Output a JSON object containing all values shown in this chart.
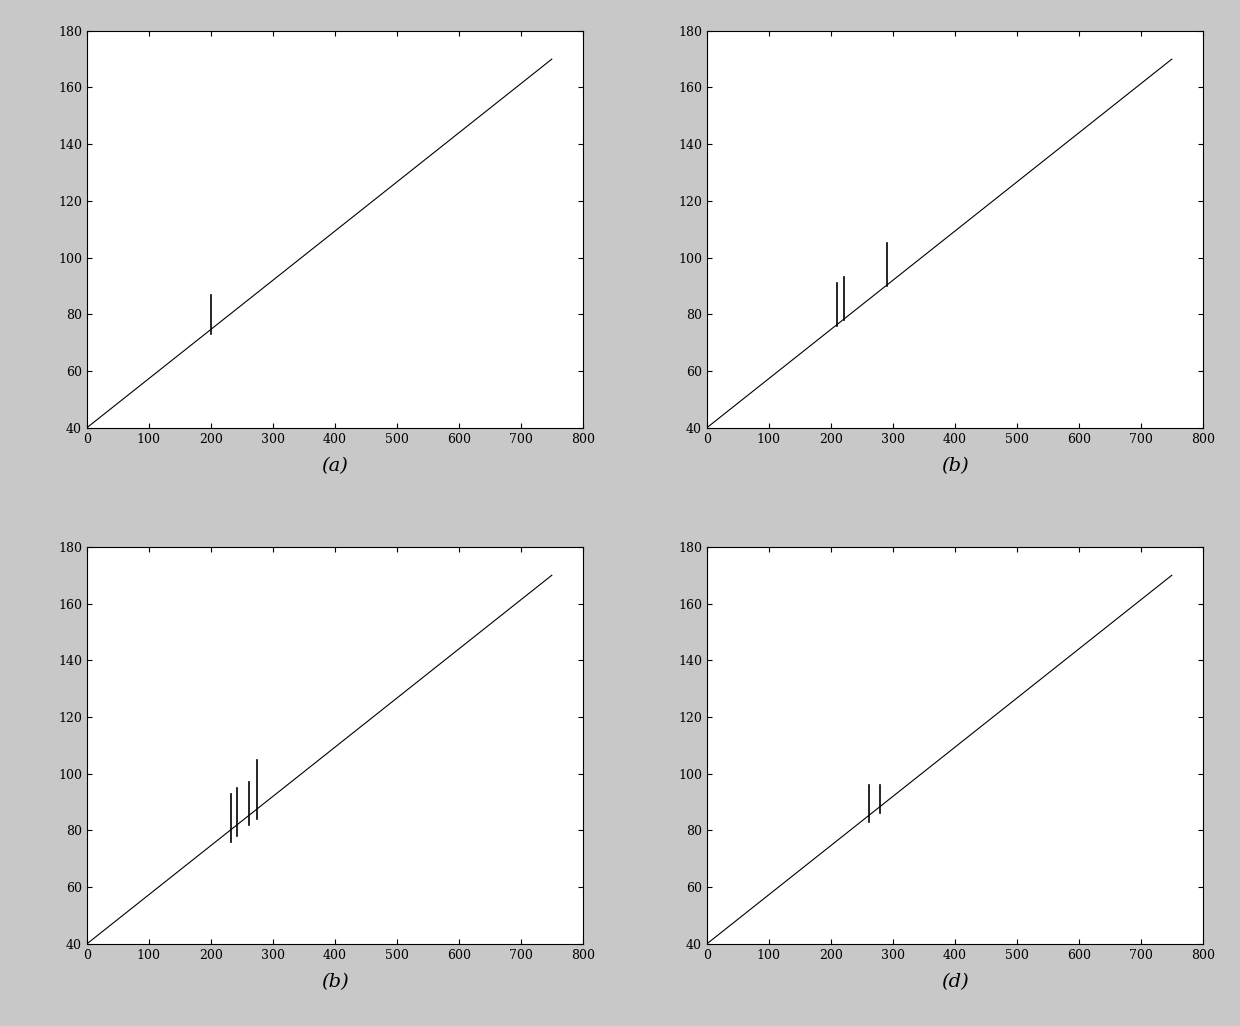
{
  "subplots": [
    {
      "label": "(a)",
      "xlim": [
        0,
        800
      ],
      "ylim": [
        40,
        180
      ],
      "xticks": [
        0,
        100,
        200,
        300,
        400,
        500,
        600,
        700,
        800
      ],
      "yticks": [
        40,
        60,
        80,
        100,
        120,
        140,
        160,
        180
      ],
      "line_x0": 0,
      "line_y0": 40,
      "line_x1": 750,
      "line_y1": 170,
      "spikes": [
        {
          "x": 200,
          "y_base": 73,
          "y_top": 87
        }
      ]
    },
    {
      "label": "(b)",
      "xlim": [
        0,
        800
      ],
      "ylim": [
        40,
        180
      ],
      "xticks": [
        0,
        100,
        200,
        300,
        400,
        500,
        600,
        700,
        800
      ],
      "yticks": [
        40,
        60,
        80,
        100,
        120,
        140,
        160,
        180
      ],
      "line_x0": 0,
      "line_y0": 40,
      "line_x1": 750,
      "line_y1": 170,
      "spikes": [
        {
          "x": 210,
          "y_base": 76,
          "y_top": 91
        },
        {
          "x": 222,
          "y_base": 78,
          "y_top": 93
        },
        {
          "x": 233,
          "y_base": 80,
          "y_top": 80
        },
        {
          "x": 290,
          "y_base": 90,
          "y_top": 105
        }
      ]
    },
    {
      "label": "(b)",
      "xlim": [
        0,
        800
      ],
      "ylim": [
        40,
        180
      ],
      "xticks": [
        0,
        100,
        200,
        300,
        400,
        500,
        600,
        700,
        800
      ],
      "yticks": [
        40,
        60,
        80,
        100,
        120,
        140,
        160,
        180
      ],
      "line_x0": 0,
      "line_y0": 40,
      "line_x1": 750,
      "line_y1": 170,
      "spikes": [
        {
          "x": 232,
          "y_base": 76,
          "y_top": 93
        },
        {
          "x": 243,
          "y_base": 78,
          "y_top": 95
        },
        {
          "x": 252,
          "y_base": 80,
          "y_top": 80
        },
        {
          "x": 261,
          "y_base": 82,
          "y_top": 97
        },
        {
          "x": 275,
          "y_base": 84,
          "y_top": 105
        }
      ]
    },
    {
      "label": "(d)",
      "xlim": [
        0,
        800
      ],
      "ylim": [
        40,
        180
      ],
      "xticks": [
        0,
        100,
        200,
        300,
        400,
        500,
        600,
        700,
        800
      ],
      "yticks": [
        40,
        60,
        80,
        100,
        120,
        140,
        160,
        180
      ],
      "line_x0": 0,
      "line_y0": 40,
      "line_x1": 750,
      "line_y1": 170,
      "spikes": [
        {
          "x": 262,
          "y_base": 83,
          "y_top": 96
        },
        {
          "x": 280,
          "y_base": 86,
          "y_top": 96
        }
      ]
    }
  ],
  "fig_bgcolor": "#c8c8c8",
  "axes_bgcolor": "#ffffff",
  "line_color": "#000000",
  "spike_color": "#000000",
  "label_fontsize": 14,
  "tick_fontsize": 9,
  "figwidth": 12.4,
  "figheight": 10.26,
  "dpi": 100
}
